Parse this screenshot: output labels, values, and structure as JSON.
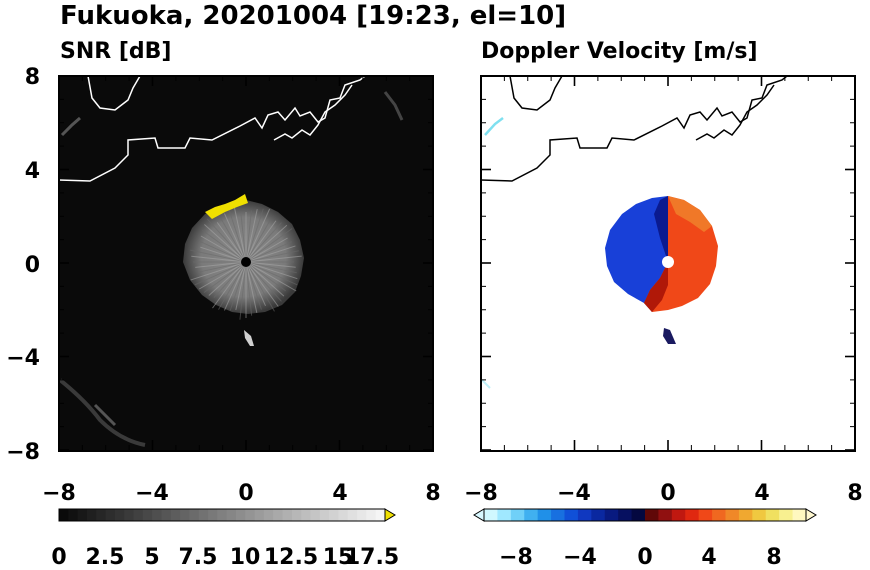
{
  "figure_title": "Fukuoka, 20201004 [19:23, el=10]",
  "chart_data": [
    {
      "type": "heatmap",
      "title": "SNR [dB]",
      "xlim": [
        -8,
        8
      ],
      "ylim": [
        -8,
        8
      ],
      "xticks": [
        "−8",
        "−4",
        "0",
        "4",
        "8"
      ],
      "yticks": [
        "8",
        "4",
        "0",
        "−4",
        "−8"
      ],
      "colorbar": {
        "range": [
          0,
          17.5
        ],
        "ticks": [
          "0",
          "2.5",
          "5",
          "7.5",
          "10",
          "12.5",
          "15",
          "17.5"
        ],
        "extend": "max",
        "low_color": "#000000",
        "high_color": "#ffffff",
        "over_color": "#f0e000"
      },
      "echo": {
        "center": [
          0,
          0
        ],
        "radius_km": 2.8,
        "mean_snr_db": 9,
        "high_snr_arc": {
          "x_range": [
            -1.8,
            0.1
          ],
          "y": 2.6,
          "color": "#f0e000"
        },
        "tail": {
          "x": 0.2,
          "y": -3.4
        }
      },
      "background_color": "#0a0a0a"
    },
    {
      "type": "heatmap",
      "title": "Doppler Velocity [m/s]",
      "xlim": [
        -8,
        8
      ],
      "ylim": [
        -8,
        8
      ],
      "xticks": [
        "−8",
        "−4",
        "0",
        "4",
        "8"
      ],
      "colorbar": {
        "range": [
          -10,
          10
        ],
        "ticks": [
          "−8",
          "−4",
          "0",
          "4",
          "8"
        ],
        "extend": "both",
        "negative_color": "#1030d0",
        "positive_color": "#f04010"
      },
      "echo": {
        "center": [
          0,
          0
        ],
        "radius_km": 2.8,
        "approaching_side": "west",
        "receding_side": "east"
      },
      "background_color": "#ffffff"
    }
  ]
}
